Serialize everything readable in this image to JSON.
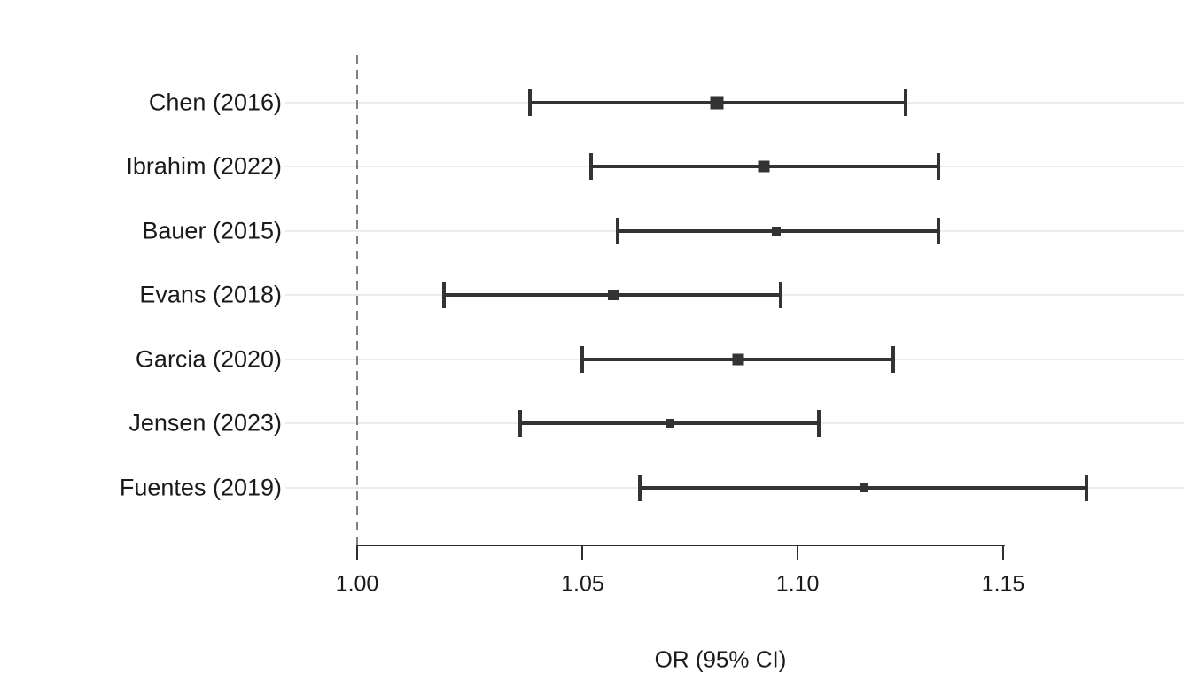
{
  "figure": {
    "background": "#ffffff"
  },
  "chart_data": {
    "type": "forest-plot",
    "title": "",
    "xlabel": "OR (95% CI)",
    "x_scale": "log",
    "x_tick_labels": [
      "1.00",
      "1.05",
      "1.10",
      "1.15"
    ],
    "x_tick_values": [
      1.0,
      1.05,
      1.1,
      1.15
    ],
    "x_range": [
      1.0,
      1.15
    ],
    "reference_line_value": 1.0,
    "grid": "horizontal-only",
    "legend": "none",
    "studies": [
      {
        "label": "Chen (2016)",
        "or": 1.081,
        "ci_low": 1.038,
        "ci_high": 1.126,
        "marker_size": 15
      },
      {
        "label": "Ibrahim (2022)",
        "or": 1.092,
        "ci_low": 1.052,
        "ci_high": 1.134,
        "marker_size": 13
      },
      {
        "label": "Bauer (2015)",
        "or": 1.095,
        "ci_low": 1.058,
        "ci_high": 1.134,
        "marker_size": 10
      },
      {
        "label": "Evans (2018)",
        "or": 1.057,
        "ci_low": 1.019,
        "ci_high": 1.096,
        "marker_size": 12
      },
      {
        "label": "Garcia (2020)",
        "or": 1.086,
        "ci_low": 1.05,
        "ci_high": 1.123,
        "marker_size": 13
      },
      {
        "label": "Jensen (2023)",
        "or": 1.07,
        "ci_low": 1.036,
        "ci_high": 1.105,
        "marker_size": 10
      },
      {
        "label": "Fuentes (2019)",
        "or": 1.116,
        "ci_low": 1.063,
        "ci_high": 1.171,
        "marker_size": 10
      }
    ],
    "colors": {
      "bar": "#333333",
      "marker": "#333333",
      "gridline": "#ececec",
      "reference_line": "#7f7f7f",
      "axis": "#2e2e2e",
      "text": "#1a1a1a",
      "background": "#ffffff"
    }
  }
}
